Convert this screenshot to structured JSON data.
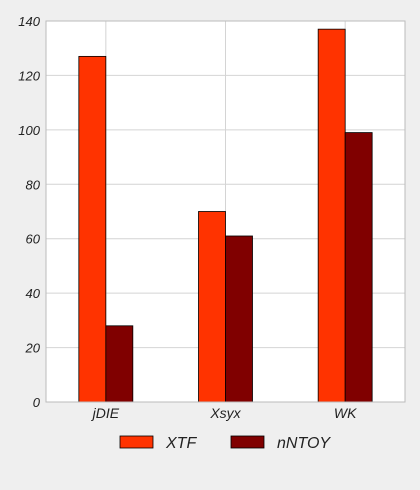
{
  "chart_data": {
    "type": "bar",
    "categories": [
      "jDIE",
      "Xsyx",
      "WK"
    ],
    "series": [
      {
        "name": "XTF",
        "values": [
          127,
          70,
          137
        ],
        "color": "#ff3300"
      },
      {
        "name": "nNTOY",
        "values": [
          28,
          61,
          99
        ],
        "color": "#800000"
      }
    ],
    "ylim": [
      0,
      140
    ],
    "yticks": [
      0,
      20,
      40,
      60,
      80,
      100,
      120,
      140
    ],
    "grid": true,
    "legend_position": "bottom-center",
    "title": "",
    "xlabel": "",
    "ylabel": ""
  }
}
